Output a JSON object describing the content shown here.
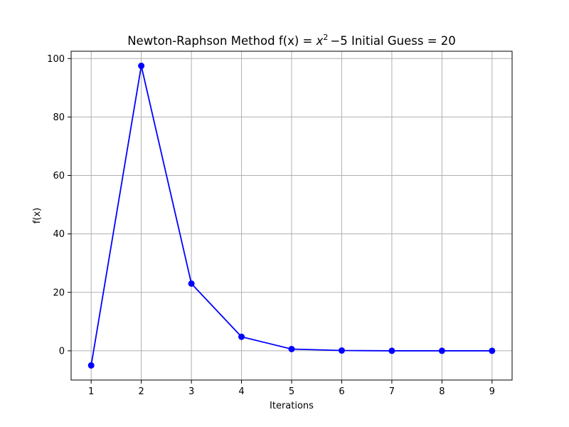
{
  "chart_data": {
    "type": "line",
    "title": {
      "prefix": "Newton-Raphson Method f(x) = ",
      "var": "x",
      "power": "2",
      "minus": "−5",
      "suffix": " Initial Guess = 20"
    },
    "xlabel": "Iterations",
    "ylabel": "f(x)",
    "x": [
      1,
      2,
      3,
      4,
      5,
      6,
      7,
      8,
      9
    ],
    "series": [
      {
        "values": [
          -5,
          97.5,
          23.0,
          4.8,
          0.6,
          0.1,
          0.0,
          0.0,
          0.0
        ],
        "color": "#0000ff",
        "marker": "circle"
      }
    ],
    "xticks": [
      1,
      2,
      3,
      4,
      5,
      6,
      7,
      8,
      9
    ],
    "yticks": [
      0,
      20,
      40,
      60,
      80,
      100
    ],
    "xlim": [
      0.6,
      9.4
    ],
    "ylim": [
      -10,
      102.5
    ],
    "grid": true
  }
}
